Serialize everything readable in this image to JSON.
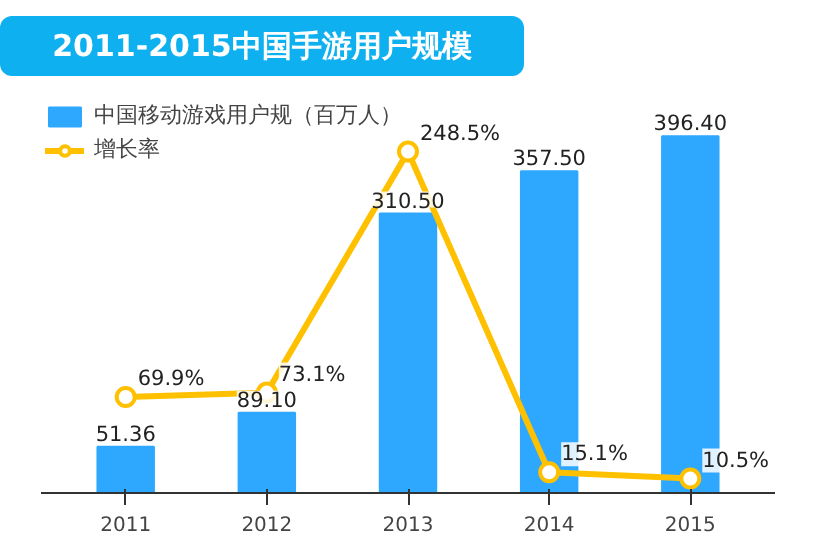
{
  "chart_data": {
    "type": "bar",
    "title": "2011-2015中国手游用户规模",
    "categories": [
      "2011",
      "2012",
      "2013",
      "2014",
      "2015"
    ],
    "series": [
      {
        "name": "中国移动游戏用户规（百万人）",
        "color": "#2ea7ff",
        "values": [
          51.36,
          89.1,
          310.5,
          357.5,
          396.4
        ],
        "value_labels": [
          "51.36",
          "89.10",
          "310.50",
          "357.50",
          "396.40"
        ]
      },
      {
        "name": "增长率",
        "type": "line",
        "axis": "y2",
        "color": "#ffc000",
        "values": [
          69.9,
          73.1,
          248.5,
          15.1,
          10.5
        ],
        "value_labels": [
          "69.9%",
          "73.1%",
          "248.5%",
          "15.1%",
          "10.5%"
        ]
      }
    ],
    "tick_labels": "x",
    "grid": false,
    "legend": "top left",
    "marker": "circle",
    "line_style": "solid"
  }
}
